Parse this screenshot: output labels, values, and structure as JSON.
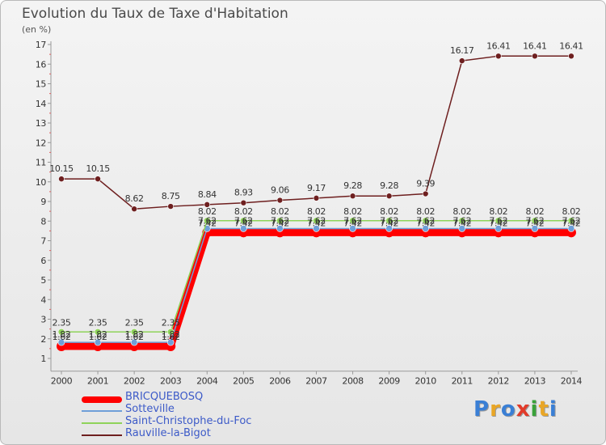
{
  "page": {
    "title": "Evolution du Taux de Taxe d'Habitation",
    "unit": "(en %)",
    "logo": {
      "text": "Proxiti",
      "colors": [
        "#3a7fd5",
        "#e9a626",
        "#3a7fd5",
        "#e23b2a",
        "#3aa23a",
        "#e9a626",
        "#3a7fd5"
      ]
    }
  },
  "chart_data": {
    "type": "line",
    "title": "Evolution du Taux de Taxe d'Habitation",
    "ylabel": "(en %)",
    "xlabel": "",
    "ylim": [
      0.6,
      17
    ],
    "yticks": [
      1,
      2,
      3,
      4,
      5,
      6,
      7,
      8,
      9,
      10,
      11,
      12,
      13,
      14,
      15,
      16,
      17
    ],
    "grid": false,
    "x": [
      "2000",
      "2001",
      "2002",
      "2003",
      "2004",
      "2005",
      "2006",
      "2007",
      "2008",
      "2009",
      "2010",
      "2011",
      "2012",
      "2013",
      "2014"
    ],
    "series": [
      {
        "name": "BRICQUEBOSQ",
        "color": "#ff0000",
        "values": [
          1.62,
          1.62,
          1.62,
          1.62,
          7.42,
          7.42,
          7.42,
          7.42,
          7.42,
          7.42,
          7.42,
          7.42,
          7.42,
          7.42,
          7.42
        ],
        "labels": [
          "1.62",
          "1.62",
          "1.62",
          "1.62",
          "7.42",
          "7.42",
          "7.42",
          "7.42",
          "7.42",
          "7.42",
          "7.42",
          "7.42",
          "7.42",
          "7.42",
          "7.42"
        ]
      },
      {
        "name": "Sotteville",
        "color": "#6f9fd8",
        "values": [
          1.82,
          1.82,
          1.82,
          1.82,
          7.62,
          7.62,
          7.62,
          7.62,
          7.62,
          7.62,
          7.62,
          7.62,
          7.62,
          7.62,
          7.62
        ],
        "labels": [
          "1.82",
          "1.82",
          "1.82",
          "1.82",
          "7.62",
          "7.62",
          "7.62",
          "7.62",
          "7.62",
          "7.62",
          "7.62",
          "7.62",
          "7.62",
          "7.62",
          "7.62"
        ]
      },
      {
        "name": "Saint-Christophe-du-Foc",
        "color": "#8fd35a",
        "values": [
          2.35,
          2.35,
          2.35,
          2.35,
          8.02,
          8.02,
          8.02,
          8.02,
          8.02,
          8.02,
          8.02,
          8.02,
          8.02,
          8.02,
          8.02
        ],
        "labels": [
          "2.35",
          "2.35",
          "2.35",
          "2.35",
          "8.02",
          "8.02",
          "8.02",
          "8.02",
          "8.02",
          "8.02",
          "8.02",
          "8.02",
          "8.02",
          "8.02",
          "8.02"
        ]
      },
      {
        "name": "Rauville-la-Bigot",
        "color": "#6e1f1f",
        "values": [
          10.15,
          10.15,
          8.62,
          8.75,
          8.84,
          8.93,
          9.06,
          9.17,
          9.28,
          9.28,
          9.39,
          16.17,
          16.41,
          16.41,
          16.41
        ],
        "labels": [
          "10.15",
          "10.15",
          "8.62",
          "8.75",
          "8.84",
          "8.93",
          "9.06",
          "9.17",
          "9.28",
          "9.28",
          "9.39",
          "16.17",
          "16.41",
          "16.41",
          "16.41"
        ]
      }
    ]
  },
  "legend": {
    "items": [
      {
        "label": "BRICQUEBOSQ",
        "color": "#ff0000"
      },
      {
        "label": "Sotteville",
        "color": "#6f9fd8"
      },
      {
        "label": "Saint-Christophe-du-Foc",
        "color": "#8fd35a"
      },
      {
        "label": "Rauville-la-Bigot",
        "color": "#6e1f1f"
      }
    ]
  }
}
